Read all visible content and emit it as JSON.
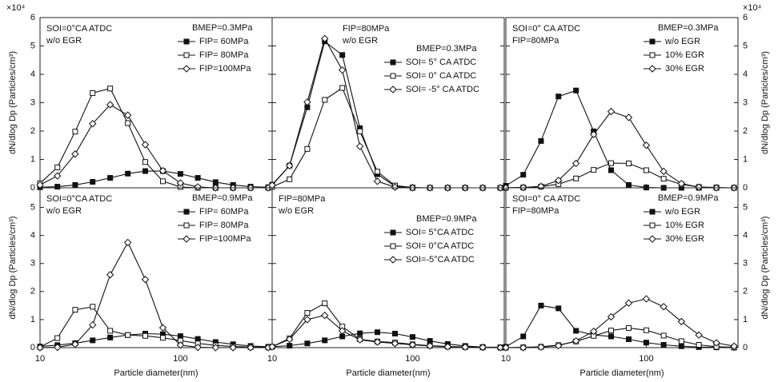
{
  "chart_data": [
    {
      "type": "line",
      "log_x": true,
      "xlim": [
        10,
        450
      ],
      "xticks": [
        10,
        100
      ],
      "show_xtick_labels": false,
      "ylim": [
        0,
        6
      ],
      "yticks": [
        0,
        1,
        2,
        3,
        4,
        5,
        6
      ],
      "ytick_side": "left",
      "y_multiplier": "×10⁴",
      "ylabel": "dN/dlog Dp (Particles/cm³)",
      "annotations": [
        "SOI=0°CA ATDC",
        "w/o EGR"
      ],
      "legend_title": "BMEP=0.3MPa",
      "legend": "upper right",
      "x": [
        10,
        13.3,
        17.8,
        23.7,
        31.6,
        42.2,
        56.2,
        75,
        100,
        133,
        178,
        237,
        316,
        422
      ],
      "series": [
        {
          "name": "FIP=  60MPa",
          "color": "#111111",
          "marker": "square-filled",
          "values": [
            0.02,
            0.04,
            0.1,
            0.21,
            0.35,
            0.5,
            0.59,
            0.59,
            0.49,
            0.35,
            0.2,
            0.1,
            0.04,
            0.02
          ]
        },
        {
          "name": "FIP=  80MPa",
          "color": "#111111",
          "marker": "square-open",
          "values": [
            0.16,
            0.72,
            1.98,
            3.34,
            3.5,
            2.28,
            0.91,
            0.23,
            0.03,
            0,
            0,
            0,
            0,
            0
          ]
        },
        {
          "name": "FIP=100MPa",
          "color": "#111111",
          "marker": "diamond-open",
          "values": [
            0.1,
            0.42,
            1.19,
            2.26,
            2.93,
            2.56,
            1.52,
            0.6,
            0.17,
            0.03,
            0,
            0,
            0,
            0
          ]
        }
      ]
    },
    {
      "type": "line",
      "log_x": true,
      "xlim": [
        10,
        450
      ],
      "xticks": [
        10,
        100
      ],
      "show_xtick_labels": false,
      "ylim": [
        0,
        6
      ],
      "yticks": [
        0,
        1,
        2,
        3,
        4,
        5,
        6
      ],
      "ytick_side": "none",
      "annotations": [
        "FIP=80MPa",
        "w/o EGR"
      ],
      "legend_title": "BMEP=0.3MPa",
      "legend": "upper right",
      "x": [
        10,
        13.3,
        17.8,
        23.7,
        31.6,
        42.2,
        56.2,
        75,
        100,
        133,
        178,
        237,
        316,
        422
      ],
      "series": [
        {
          "name": "SOI=  5° CA ATDC",
          "color": "#111111",
          "marker": "square-filled",
          "values": [
            0.11,
            0.78,
            2.84,
            5.16,
            4.68,
            2.1,
            0.48,
            0.05,
            0,
            0,
            0,
            0,
            0,
            0
          ]
        },
        {
          "name": "SOI=  0° CA ATDC",
          "color": "#111111",
          "marker": "square-open",
          "values": [
            0.03,
            0.3,
            1.37,
            3.1,
            3.52,
            1.99,
            0.57,
            0.08,
            0.01,
            0,
            0,
            0,
            0,
            0
          ]
        },
        {
          "name": "SOI= -5° CA ATDC",
          "color": "#111111",
          "marker": "diamond-open",
          "values": [
            0.09,
            0.78,
            3.02,
            5.26,
            4.15,
            1.46,
            0.23,
            0.02,
            0,
            0,
            0,
            0,
            0,
            0
          ]
        }
      ]
    },
    {
      "type": "line",
      "log_x": true,
      "xlim": [
        10,
        450
      ],
      "xticks": [
        10,
        100
      ],
      "show_xtick_labels": false,
      "ylim": [
        0,
        6
      ],
      "yticks": [
        0,
        1,
        2,
        3,
        4,
        5,
        6
      ],
      "ytick_side": "right",
      "y_multiplier": "×10⁴",
      "ylabel": "dN/dlog Dp (Particles/cm³)",
      "annotations": [
        "SOI=0° CA ATDC",
        "FIP=80MPa"
      ],
      "legend_title": "BMEP=0.3MPa",
      "legend": "upper right",
      "x": [
        10,
        13.3,
        17.8,
        23.7,
        31.6,
        42.2,
        56.2,
        75,
        100,
        133,
        178,
        237,
        316,
        422
      ],
      "series": [
        {
          "name": "w/o EGR",
          "color": "#111111",
          "marker": "square-filled",
          "values": [
            0.07,
            0.46,
            1.65,
            3.22,
            3.43,
            1.99,
            0.62,
            0.1,
            0.01,
            0,
            0,
            0,
            0,
            0
          ]
        },
        {
          "name": "10% EGR",
          "color": "#111111",
          "marker": "square-open",
          "values": [
            0,
            0.01,
            0.04,
            0.13,
            0.33,
            0.63,
            0.87,
            0.86,
            0.62,
            0.32,
            0.12,
            0.03,
            0.01,
            0
          ]
        },
        {
          "name": "30% EGR",
          "color": "#111111",
          "marker": "diamond-open",
          "values": [
            0,
            0.01,
            0.05,
            0.26,
            0.86,
            1.88,
            2.69,
            2.48,
            1.5,
            0.58,
            0.15,
            0.02,
            0,
            0
          ]
        }
      ]
    },
    {
      "type": "line",
      "log_x": true,
      "xlim": [
        10,
        450
      ],
      "xticks": [
        10,
        100
      ],
      "show_xtick_labels": true,
      "ylim": [
        0,
        5.7
      ],
      "yticks": [
        0,
        1,
        2,
        3,
        4,
        5
      ],
      "ytick_side": "left",
      "ylabel": "dN/dlog Dp (Particles/cm³)",
      "xlabel": "Particle diameter(nm)",
      "annotations": [
        "SOI=0°CA ATDC",
        "w/o EGR"
      ],
      "legend_title": "BMEP=0.9MPa",
      "legend": "upper right",
      "x": [
        10,
        13.3,
        17.8,
        23.7,
        31.6,
        42.2,
        56.2,
        75,
        100,
        133,
        178,
        237,
        316,
        422
      ],
      "series": [
        {
          "name": "FIP=  60MPa",
          "color": "#111111",
          "marker": "square-filled",
          "values": [
            0.04,
            0.09,
            0.16,
            0.26,
            0.36,
            0.45,
            0.5,
            0.48,
            0.41,
            0.31,
            0.2,
            0.12,
            0.06,
            0.03
          ]
        },
        {
          "name": "FIP=  80MPa",
          "color": "#111111",
          "marker": "square-open",
          "values": [
            0.02,
            0.34,
            1.35,
            1.46,
            0.6,
            0.45,
            0.42,
            0.35,
            0.25,
            0.15,
            0.08,
            0.04,
            0.02,
            0.01
          ]
        },
        {
          "name": "FIP=100MPa",
          "color": "#111111",
          "marker": "diamond-open",
          "values": [
            0,
            0.01,
            0.12,
            0.81,
            2.6,
            3.75,
            2.43,
            0.71,
            0.09,
            0.01,
            0,
            0,
            0,
            0
          ]
        }
      ]
    },
    {
      "type": "line",
      "log_x": true,
      "xlim": [
        10,
        450
      ],
      "xticks": [
        10,
        100
      ],
      "show_xtick_labels": true,
      "ylim": [
        0,
        5.7
      ],
      "yticks": [
        0,
        1,
        2,
        3,
        4,
        5
      ],
      "ytick_side": "none",
      "xlabel": "Particle diameter(nm)",
      "annotations": [
        "FIP=80MPa",
        "w/o EGR"
      ],
      "legend_title": "BMEP=0.9MPa",
      "legend": "upper right",
      "x": [
        10,
        13.3,
        17.8,
        23.7,
        31.6,
        42.2,
        56.2,
        75,
        100,
        133,
        178,
        237,
        316,
        422
      ],
      "series": [
        {
          "name": "SOI= 5°CA  ATDC",
          "color": "#111111",
          "marker": "square-filled",
          "values": [
            0.03,
            0.07,
            0.15,
            0.26,
            0.4,
            0.51,
            0.55,
            0.5,
            0.38,
            0.24,
            0.13,
            0.06,
            0.02,
            0.01
          ]
        },
        {
          "name": "SOI= 0°CA  ATDC",
          "color": "#111111",
          "marker": "square-open",
          "values": [
            0.03,
            0.33,
            1.24,
            1.58,
            0.75,
            0.3,
            0.22,
            0.18,
            0.12,
            0.07,
            0.04,
            0.02,
            0.01,
            0
          ]
        },
        {
          "name": "SOI=-5°CA  ATDC",
          "color": "#111111",
          "marker": "diamond-open",
          "values": [
            0.03,
            0.3,
            1.0,
            1.15,
            0.6,
            0.28,
            0.2,
            0.15,
            0.1,
            0.06,
            0.03,
            0.02,
            0.01,
            0
          ]
        }
      ]
    },
    {
      "type": "line",
      "log_x": true,
      "xlim": [
        10,
        450
      ],
      "xticks": [
        10,
        100
      ],
      "show_xtick_labels": true,
      "ylim": [
        0,
        5.7
      ],
      "yticks": [
        0,
        1,
        2,
        3,
        4,
        5
      ],
      "ytick_side": "right",
      "ylabel": "dN/dlog Dp (Particles/cm³)",
      "xlabel": "Particle diameter(nm)",
      "annotations": [
        "SOI=0° CA  ATDC",
        "FIP=80MPa"
      ],
      "legend_title": "BMEP=0.9MPa",
      "legend": "upper right",
      "x": [
        10,
        13.3,
        17.8,
        23.7,
        31.6,
        42.2,
        56.2,
        75,
        100,
        133,
        178,
        237,
        316,
        422
      ],
      "series": [
        {
          "name": "w/o EGR",
          "color": "#111111",
          "marker": "square-filled",
          "values": [
            0.03,
            0.4,
            1.5,
            1.4,
            0.6,
            0.45,
            0.4,
            0.3,
            0.18,
            0.1,
            0.05,
            0.02,
            0.01,
            0
          ]
        },
        {
          "name": "10% EGR",
          "color": "#111111",
          "marker": "square-open",
          "values": [
            0,
            0.01,
            0.03,
            0.09,
            0.22,
            0.42,
            0.61,
            0.7,
            0.62,
            0.43,
            0.23,
            0.1,
            0.03,
            0.01
          ]
        },
        {
          "name": "30% EGR",
          "color": "#111111",
          "marker": "diamond-open",
          "values": [
            0,
            0,
            0.02,
            0.07,
            0.24,
            0.58,
            1.1,
            1.59,
            1.74,
            1.46,
            0.93,
            0.45,
            0.17,
            0.05
          ]
        }
      ]
    }
  ]
}
